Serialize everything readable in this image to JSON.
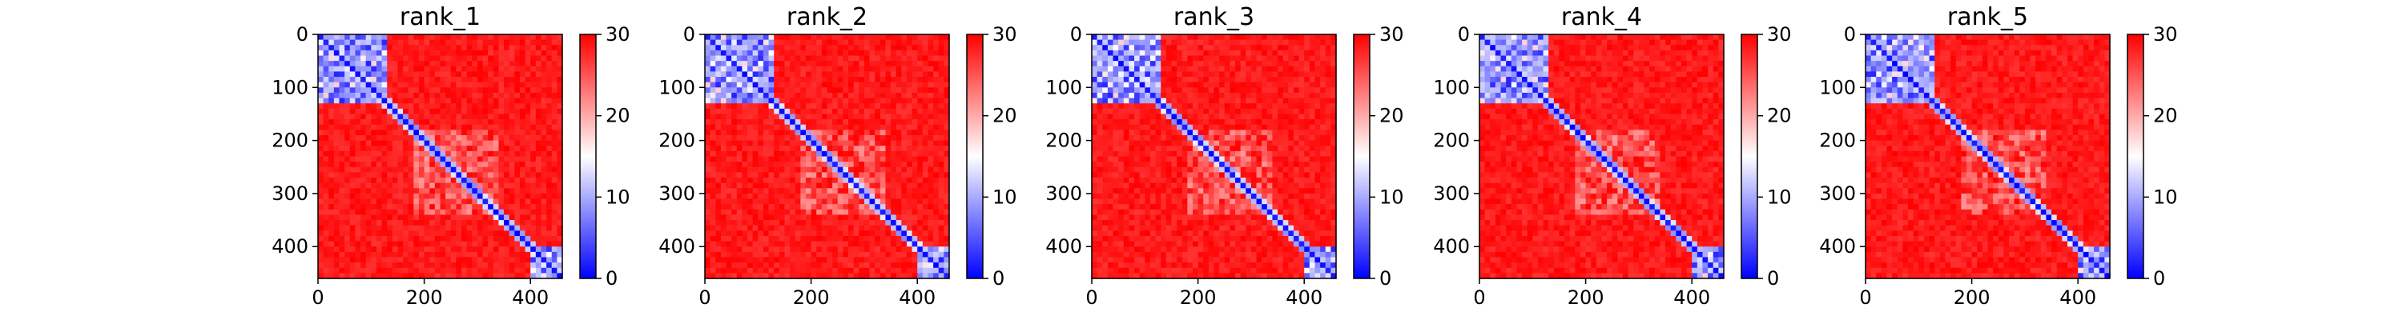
{
  "colors": {
    "low": "#0000ff",
    "mid": "#ffffff",
    "high": "#ff0000",
    "axis": "#000000"
  },
  "chart_data": [
    {
      "type": "heatmap",
      "title": "rank_1",
      "x_ticks": [
        "0",
        "200",
        "400"
      ],
      "y_ticks": [
        "0",
        "100",
        "200",
        "300",
        "400"
      ],
      "xlim": [
        0,
        460
      ],
      "ylim": [
        460,
        0
      ],
      "colorbar": {
        "ticks": [
          "0",
          "10",
          "20",
          "30"
        ],
        "range": [
          0,
          30
        ],
        "colormap": "bwr"
      },
      "blue_blocks": [
        [
          0,
          130
        ],
        [
          400,
          460
        ]
      ],
      "faint_blocks": [
        [
          180,
          340
        ]
      ],
      "diagonal_value": 0
    },
    {
      "type": "heatmap",
      "title": "rank_2",
      "x_ticks": [
        "0",
        "200",
        "400"
      ],
      "y_ticks": [
        "0",
        "100",
        "200",
        "300",
        "400"
      ],
      "xlim": [
        0,
        460
      ],
      "ylim": [
        460,
        0
      ],
      "colorbar": {
        "ticks": [
          "0",
          "10",
          "20",
          "30"
        ],
        "range": [
          0,
          30
        ],
        "colormap": "bwr"
      },
      "blue_blocks": [
        [
          0,
          130
        ],
        [
          400,
          460
        ]
      ],
      "faint_blocks": [
        [
          180,
          340
        ]
      ],
      "diagonal_value": 0
    },
    {
      "type": "heatmap",
      "title": "rank_3",
      "x_ticks": [
        "0",
        "200",
        "400"
      ],
      "y_ticks": [
        "0",
        "100",
        "200",
        "300",
        "400"
      ],
      "xlim": [
        0,
        460
      ],
      "ylim": [
        460,
        0
      ],
      "colorbar": {
        "ticks": [
          "0",
          "10",
          "20",
          "30"
        ],
        "range": [
          0,
          30
        ],
        "colormap": "bwr"
      },
      "blue_blocks": [
        [
          0,
          130
        ],
        [
          400,
          460
        ]
      ],
      "faint_blocks": [
        [
          180,
          340
        ]
      ],
      "diagonal_value": 0
    },
    {
      "type": "heatmap",
      "title": "rank_4",
      "x_ticks": [
        "0",
        "200",
        "400"
      ],
      "y_ticks": [
        "0",
        "100",
        "200",
        "300",
        "400"
      ],
      "xlim": [
        0,
        460
      ],
      "ylim": [
        460,
        0
      ],
      "colorbar": {
        "ticks": [
          "0",
          "10",
          "20",
          "30"
        ],
        "range": [
          0,
          30
        ],
        "colormap": "bwr"
      },
      "blue_blocks": [
        [
          0,
          130
        ],
        [
          400,
          460
        ]
      ],
      "faint_blocks": [
        [
          180,
          340
        ]
      ],
      "diagonal_value": 0
    },
    {
      "type": "heatmap",
      "title": "rank_5",
      "x_ticks": [
        "0",
        "200",
        "400"
      ],
      "y_ticks": [
        "0",
        "100",
        "200",
        "300",
        "400"
      ],
      "xlim": [
        0,
        460
      ],
      "ylim": [
        460,
        0
      ],
      "colorbar": {
        "ticks": [
          "0",
          "10",
          "20",
          "30"
        ],
        "range": [
          0,
          30
        ],
        "colormap": "bwr"
      },
      "blue_blocks": [
        [
          0,
          130
        ],
        [
          400,
          460
        ]
      ],
      "faint_blocks": [
        [
          180,
          340
        ]
      ],
      "diagonal_value": 0
    }
  ]
}
